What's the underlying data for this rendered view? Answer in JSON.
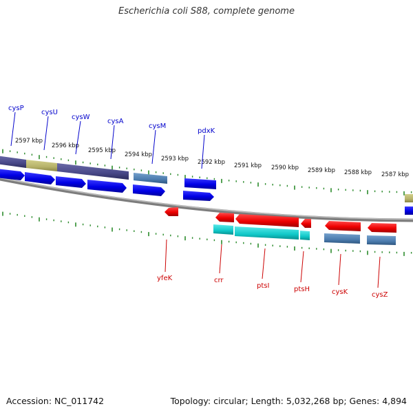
{
  "title": "Escherichia coli S88, complete genome",
  "footer": {
    "accession": "Accession: NC_011742",
    "summary": "Topology: circular; Length: 5,032,268 bp; Genes: 4,894"
  },
  "ruler_labels": [
    "2597 kbp",
    "2596 kbp",
    "2595 kbp",
    "2594 kbp",
    "2593 kbp",
    "2592 kbp",
    "2591 kbp",
    "2590 kbp",
    "2589 kbp",
    "2588 kbp",
    "2587 kbp"
  ],
  "forward_genes": [
    {
      "name": "cysP",
      "label_color": "#0000cc"
    },
    {
      "name": "cysU",
      "label_color": "#0000cc"
    },
    {
      "name": "cysW",
      "label_color": "#0000cc"
    },
    {
      "name": "cysA",
      "label_color": "#0000cc"
    },
    {
      "name": "cysM",
      "label_color": "#0000cc"
    },
    {
      "name": "pdxK",
      "label_color": "#0000cc"
    }
  ],
  "reverse_genes": [
    {
      "name": "yfeK",
      "label_color": "#cc0000"
    },
    {
      "name": "crr",
      "label_color": "#cc0000"
    },
    {
      "name": "ptsI",
      "label_color": "#cc0000"
    },
    {
      "name": "ptsH",
      "label_color": "#cc0000"
    },
    {
      "name": "cysK",
      "label_color": "#cc0000"
    },
    {
      "name": "cysZ",
      "label_color": "#cc0000"
    }
  ],
  "colors": {
    "forward_cds": "#0000ee",
    "reverse_cds": "#ee0000",
    "cog_purple": "#4b4b8a",
    "cog_olive": "#b8b46a",
    "cog_steel": "#4f7fb0",
    "cog_cyan": "#10c8c8",
    "backbone": "#888888",
    "ticks": "#2a8a2a"
  }
}
